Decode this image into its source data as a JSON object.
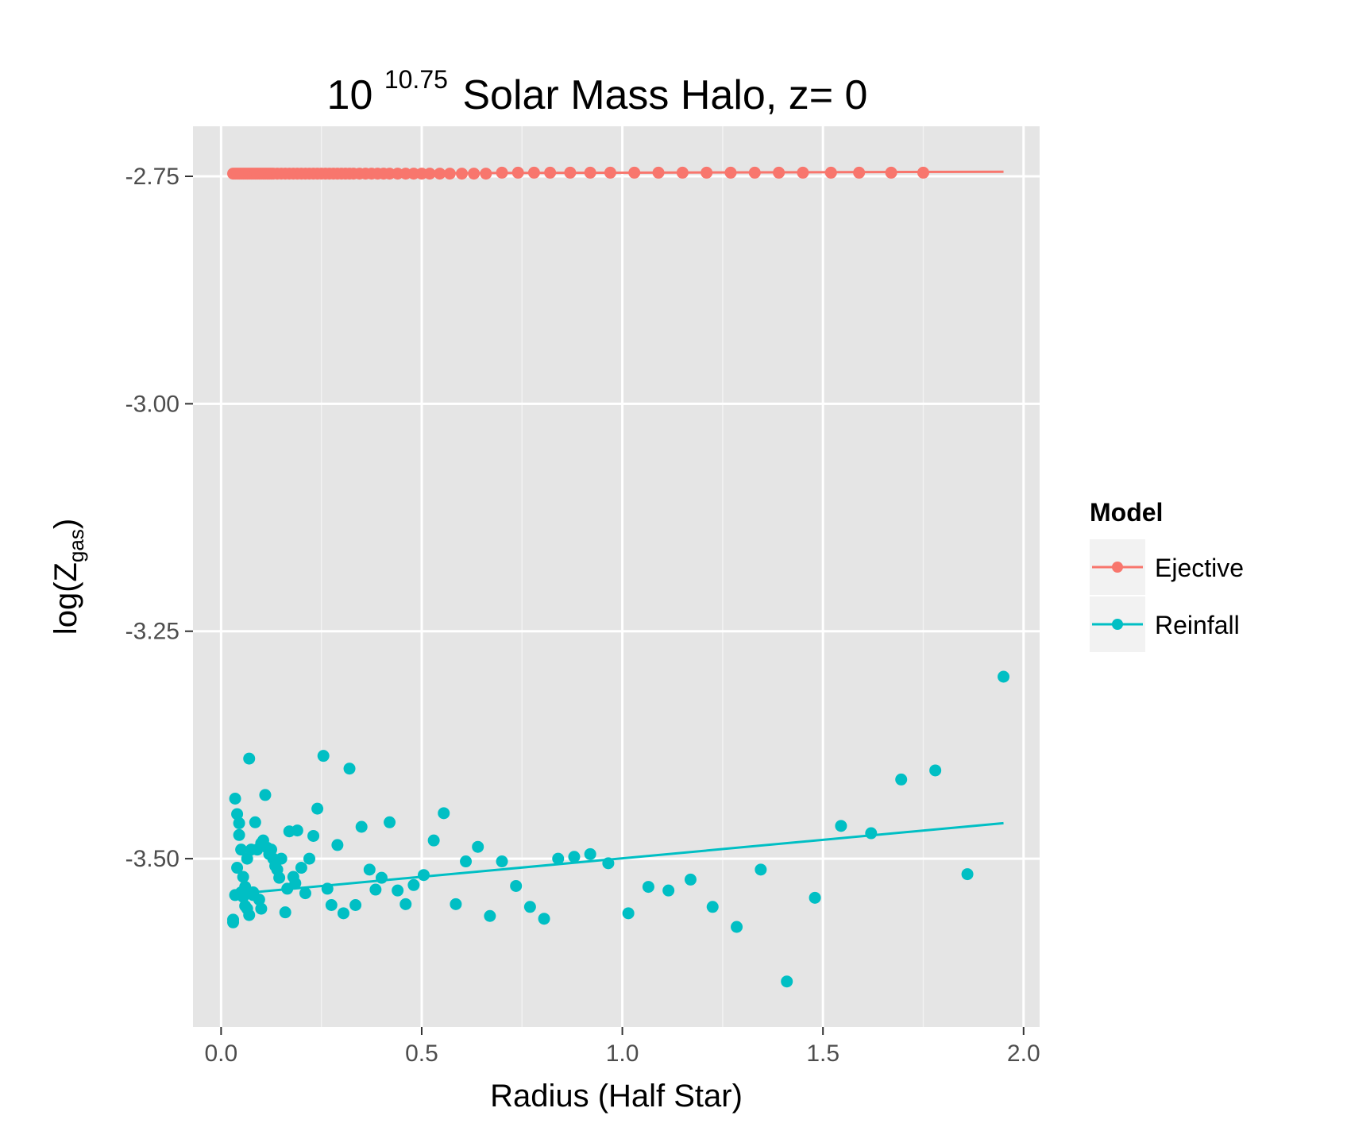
{
  "chart_data": {
    "type": "scatter",
    "title": {
      "prefix": "10",
      "superscript": "10.75",
      "suffix": "Solar Mass Halo, z= 0"
    },
    "xlabel": "Radius (Half Star)",
    "ylabel": {
      "main": "log(Z",
      "subscript": "gas",
      "close": ")"
    },
    "xlim": [
      -0.07,
      2.04
    ],
    "ylim": [
      -3.685,
      -2.695
    ],
    "x_ticks": [
      {
        "value": 0.0,
        "label": "0.0"
      },
      {
        "value": 0.5,
        "label": "0.5"
      },
      {
        "value": 1.0,
        "label": "1.0"
      },
      {
        "value": 1.5,
        "label": "1.5"
      },
      {
        "value": 2.0,
        "label": "2.0"
      }
    ],
    "y_ticks": [
      {
        "value": -2.75,
        "label": "-2.75"
      },
      {
        "value": -3.0,
        "label": "-3.00"
      },
      {
        "value": -3.25,
        "label": "-3.25"
      },
      {
        "value": -3.5,
        "label": "-3.50"
      }
    ],
    "grid": true,
    "legend": {
      "title": "Model",
      "position": "right",
      "entries": [
        "Ejective",
        "Reinfall"
      ]
    },
    "series": [
      {
        "name": "Ejective",
        "color": "#F8766D",
        "x": [
          0.03,
          0.035,
          0.04,
          0.045,
          0.05,
          0.055,
          0.06,
          0.065,
          0.07,
          0.075,
          0.08,
          0.085,
          0.09,
          0.095,
          0.1,
          0.105,
          0.11,
          0.115,
          0.12,
          0.125,
          0.13,
          0.14,
          0.15,
          0.16,
          0.17,
          0.18,
          0.19,
          0.2,
          0.21,
          0.22,
          0.23,
          0.24,
          0.25,
          0.26,
          0.27,
          0.28,
          0.29,
          0.3,
          0.31,
          0.32,
          0.33,
          0.345,
          0.36,
          0.375,
          0.39,
          0.405,
          0.42,
          0.44,
          0.46,
          0.48,
          0.5,
          0.52,
          0.545,
          0.57,
          0.6,
          0.63,
          0.66,
          0.7,
          0.74,
          0.78,
          0.82,
          0.87,
          0.92,
          0.97,
          1.03,
          1.09,
          1.15,
          1.21,
          1.27,
          1.33,
          1.39,
          1.45,
          1.52,
          1.59,
          1.67,
          1.75
        ],
        "y": [
          -2.747,
          -2.747,
          -2.747,
          -2.747,
          -2.747,
          -2.747,
          -2.747,
          -2.747,
          -2.747,
          -2.747,
          -2.747,
          -2.747,
          -2.747,
          -2.747,
          -2.747,
          -2.747,
          -2.747,
          -2.747,
          -2.747,
          -2.747,
          -2.747,
          -2.747,
          -2.747,
          -2.747,
          -2.747,
          -2.747,
          -2.747,
          -2.747,
          -2.747,
          -2.747,
          -2.747,
          -2.747,
          -2.747,
          -2.747,
          -2.747,
          -2.747,
          -2.747,
          -2.747,
          -2.747,
          -2.747,
          -2.747,
          -2.747,
          -2.747,
          -2.747,
          -2.747,
          -2.747,
          -2.747,
          -2.747,
          -2.747,
          -2.747,
          -2.747,
          -2.747,
          -2.747,
          -2.747,
          -2.747,
          -2.747,
          -2.747,
          -2.746,
          -2.746,
          -2.746,
          -2.746,
          -2.746,
          -2.746,
          -2.746,
          -2.746,
          -2.746,
          -2.746,
          -2.746,
          -2.746,
          -2.746,
          -2.746,
          -2.746,
          -2.746,
          -2.746,
          -2.746,
          -2.746
        ],
        "fit": {
          "x": [
            0.03,
            1.95
          ],
          "y": [
            -2.747,
            -2.745
          ]
        }
      },
      {
        "name": "Reinfall",
        "color": "#00BFC4",
        "x": [
          0.03,
          0.03,
          0.035,
          0.035,
          0.04,
          0.04,
          0.045,
          0.045,
          0.05,
          0.05,
          0.055,
          0.055,
          0.06,
          0.06,
          0.065,
          0.065,
          0.07,
          0.07,
          0.075,
          0.08,
          0.08,
          0.085,
          0.09,
          0.095,
          0.1,
          0.1,
          0.105,
          0.11,
          0.115,
          0.12,
          0.125,
          0.13,
          0.135,
          0.14,
          0.145,
          0.15,
          0.16,
          0.165,
          0.17,
          0.18,
          0.185,
          0.19,
          0.2,
          0.21,
          0.22,
          0.23,
          0.24,
          0.255,
          0.265,
          0.275,
          0.29,
          0.305,
          0.32,
          0.335,
          0.35,
          0.37,
          0.385,
          0.4,
          0.42,
          0.44,
          0.46,
          0.48,
          0.505,
          0.53,
          0.555,
          0.585,
          0.61,
          0.64,
          0.67,
          0.7,
          0.735,
          0.77,
          0.805,
          0.84,
          0.88,
          0.92,
          0.965,
          1.015,
          1.065,
          1.115,
          1.17,
          1.225,
          1.285,
          1.345,
          1.41,
          1.48,
          1.545,
          1.62,
          1.695,
          1.78,
          1.86,
          1.95
        ],
        "y": [
          -3.567,
          -3.57,
          -3.54,
          -3.434,
          -3.451,
          -3.51,
          -3.461,
          -3.474,
          -3.537,
          -3.49,
          -3.52,
          -3.542,
          -3.531,
          -3.552,
          -3.555,
          -3.5,
          -3.39,
          -3.562,
          -3.49,
          -3.537,
          -3.54,
          -3.46,
          -3.49,
          -3.545,
          -3.555,
          -3.483,
          -3.48,
          -3.43,
          -3.488,
          -3.495,
          -3.49,
          -3.5,
          -3.508,
          -3.512,
          -3.521,
          -3.5,
          -3.559,
          -3.533,
          -3.47,
          -3.52,
          -3.527,
          -3.469,
          -3.51,
          -3.538,
          -3.5,
          -3.475,
          -3.445,
          -3.387,
          -3.533,
          -3.551,
          -3.485,
          -3.56,
          -3.401,
          -3.551,
          -3.465,
          -3.512,
          -3.534,
          -3.521,
          -3.46,
          -3.535,
          -3.55,
          -3.529,
          -3.518,
          -3.48,
          -3.45,
          -3.55,
          -3.503,
          -3.487,
          -3.563,
          -3.503,
          -3.53,
          -3.553,
          -3.566,
          -3.5,
          -3.498,
          -3.495,
          -3.505,
          -3.56,
          -3.531,
          -3.535,
          -3.523,
          -3.553,
          -3.575,
          -3.512,
          -3.635,
          -3.543,
          -3.464,
          -3.472,
          -3.413,
          -3.403,
          -3.517,
          -3.3
        ],
        "fit": {
          "x": [
            0.03,
            1.95
          ],
          "y": [
            -3.539,
            -3.461
          ]
        }
      }
    ]
  }
}
